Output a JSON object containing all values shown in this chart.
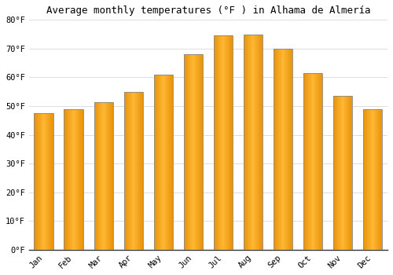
{
  "title": "Average monthly temperatures (°F ) in Alhama de Almería",
  "months": [
    "Jan",
    "Feb",
    "Mar",
    "Apr",
    "May",
    "Jun",
    "Jul",
    "Aug",
    "Sep",
    "Oct",
    "Nov",
    "Dec"
  ],
  "values": [
    47.5,
    49.0,
    51.5,
    55.0,
    61.0,
    68.0,
    74.5,
    75.0,
    70.0,
    61.5,
    53.5,
    49.0
  ],
  "bar_color_center": "#FFB733",
  "bar_color_edge": "#E8920A",
  "bar_edge_color": "#888888",
  "background_color": "#FFFFFF",
  "plot_bg_color": "#FFFFFF",
  "ylim": [
    0,
    80
  ],
  "yticks": [
    0,
    10,
    20,
    30,
    40,
    50,
    60,
    70,
    80
  ],
  "ytick_labels": [
    "0°F",
    "10°F",
    "20°F",
    "30°F",
    "40°F",
    "50°F",
    "60°F",
    "70°F",
    "80°F"
  ],
  "title_fontsize": 9,
  "tick_fontsize": 7.5,
  "grid_color": "#DDDDDD",
  "bar_width": 0.65
}
